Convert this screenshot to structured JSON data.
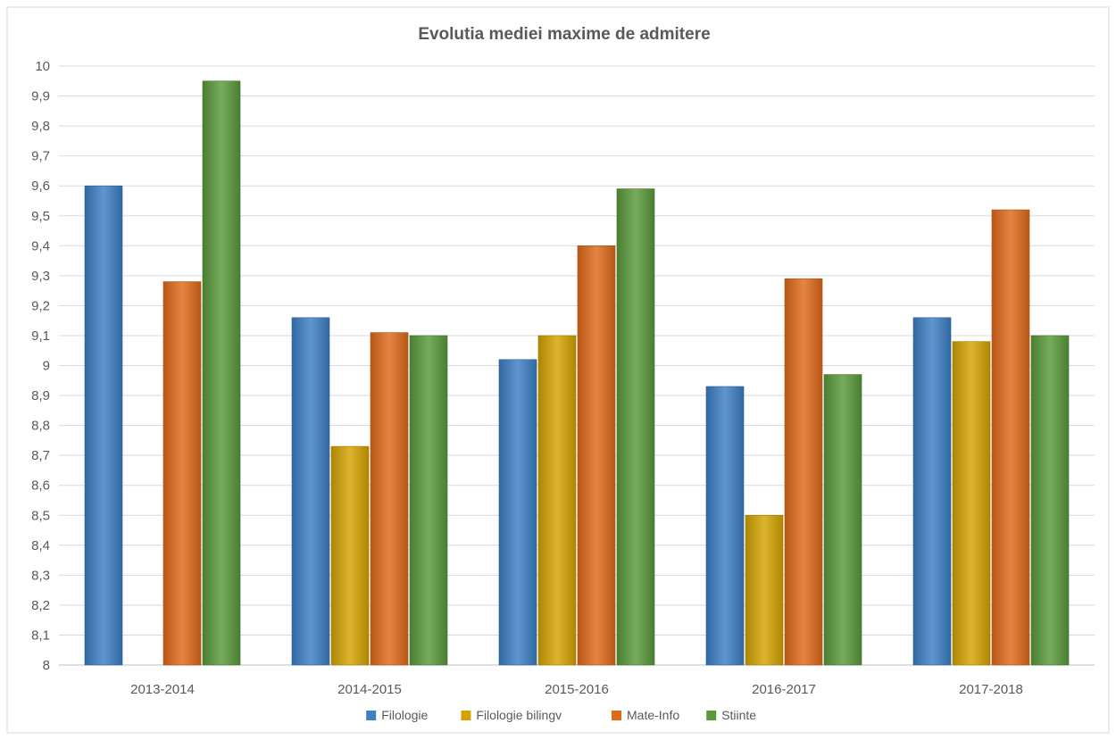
{
  "chart_data": {
    "type": "bar",
    "title": "Evolutia mediei maxime de admitere",
    "xlabel": "",
    "ylabel": "",
    "categories": [
      "2013-2014",
      "2014-2015",
      "2015-2016",
      "2016-2017",
      "2017-2018"
    ],
    "series": [
      {
        "name": "Filologie",
        "color": "#3c7fc4",
        "values": [
          9.6,
          9.16,
          9.02,
          8.93,
          9.16
        ]
      },
      {
        "name": "Filologie bilingv",
        "color": "#d4a300",
        "values": [
          null,
          8.73,
          9.1,
          8.5,
          9.08
        ]
      },
      {
        "name": "Mate-Info",
        "color": "#e06a1a",
        "values": [
          9.28,
          9.11,
          9.4,
          9.29,
          9.52
        ]
      },
      {
        "name": "Stiinte",
        "color": "#5a9a3a",
        "values": [
          9.95,
          9.1,
          9.59,
          8.97,
          9.1
        ]
      }
    ],
    "ylim": [
      8,
      10
    ],
    "ytick_step": 0.1,
    "ytick_labels": [
      "8",
      "8,1",
      "8,2",
      "8,3",
      "8,4",
      "8,5",
      "8,6",
      "8,7",
      "8,8",
      "8,9",
      "9",
      "9,1",
      "9,2",
      "9,3",
      "9,4",
      "9,5",
      "9,6",
      "9,7",
      "9,8",
      "9,9",
      "10"
    ],
    "grid": true,
    "legend_position": "bottom"
  }
}
